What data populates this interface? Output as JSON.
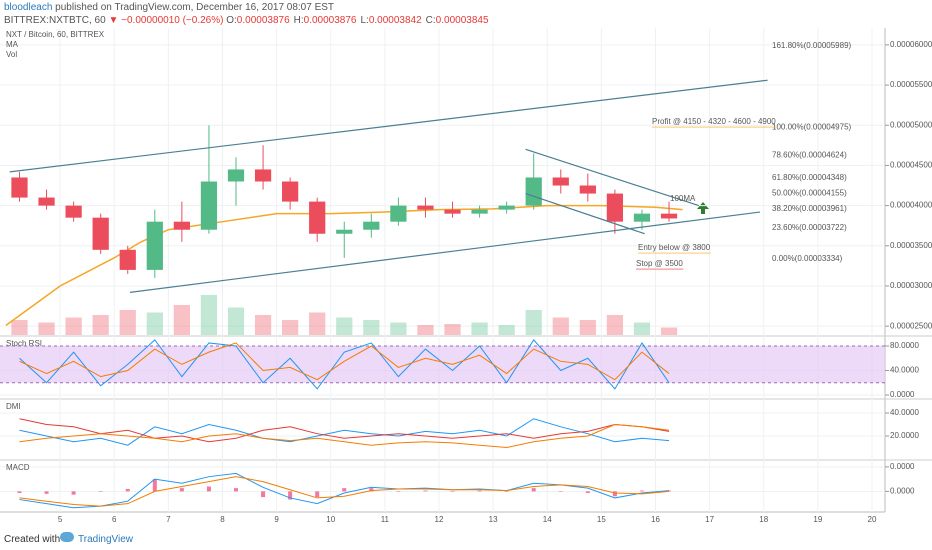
{
  "header": {
    "author": "bloodleach",
    "published": "published on TradingView.com, December 16, 2017 08:07 EST",
    "symbol": "BITTREX:NXTBTC, 60",
    "change": "▼ −0.00000010 (−0.26%)",
    "ohlc": [
      {
        "label": "O:",
        "value": "0.00003876"
      },
      {
        "label": "H:",
        "value": "0.00003876"
      },
      {
        "label": "L:",
        "value": "0.00003842"
      },
      {
        "label": "C:",
        "value": "0.00003845"
      }
    ]
  },
  "footer": {
    "created": "Created with",
    "brand": "TradingView"
  },
  "chart_data": [
    {
      "type": "candlestick",
      "title": "NXT / Bitcoin, 60, BITTREX",
      "x": [
        4.25,
        4.75,
        5.25,
        5.75,
        6.25,
        6.75,
        7.25,
        7.75,
        8.25,
        8.75,
        9.25,
        9.75,
        10.25,
        10.75,
        11.25,
        11.75,
        12.25,
        12.75,
        13.25,
        13.75,
        14.25,
        14.75,
        15.25,
        15.75,
        16.25
      ],
      "open": [
        4.35e-05,
        4.1e-05,
        4e-05,
        3.85e-05,
        3.45e-05,
        3.2e-05,
        3.8e-05,
        3.7e-05,
        4.3e-05,
        4.45e-05,
        4.3e-05,
        4.05e-05,
        3.65e-05,
        3.7e-05,
        3.8e-05,
        4e-05,
        3.95e-05,
        3.9e-05,
        3.95e-05,
        4e-05,
        4.35e-05,
        4.25e-05,
        4.15e-05,
        3.8e-05,
        3.9e-05
      ],
      "high": [
        4.42e-05,
        4.2e-05,
        4.05e-05,
        3.9e-05,
        3.5e-05,
        3.95e-05,
        4.05e-05,
        5e-05,
        4.6e-05,
        4.75e-05,
        4.35e-05,
        4.1e-05,
        3.8e-05,
        3.9e-05,
        4.1e-05,
        4.1e-05,
        4.05e-05,
        4e-05,
        4.05e-05,
        4.65e-05,
        4.45e-05,
        4.4e-05,
        4.2e-05,
        3.95e-05,
        4.05e-05
      ],
      "low": [
        4.05e-05,
        3.95e-05,
        3.8e-05,
        3.4e-05,
        3.15e-05,
        3.1e-05,
        3.55e-05,
        3.65e-05,
        4e-05,
        4.2e-05,
        3.95e-05,
        3.55e-05,
        3.35e-05,
        3.6e-05,
        3.75e-05,
        3.85e-05,
        3.85e-05,
        3.85e-05,
        3.9e-05,
        3.95e-05,
        4.15e-05,
        4.05e-05,
        3.65e-05,
        3.7e-05,
        3.8e-05
      ],
      "close": [
        4.1e-05,
        4e-05,
        3.85e-05,
        3.45e-05,
        3.2e-05,
        3.8e-05,
        3.7e-05,
        4.3e-05,
        4.45e-05,
        4.3e-05,
        4.05e-05,
        3.65e-05,
        3.7e-05,
        3.8e-05,
        4e-05,
        3.95e-05,
        3.9e-05,
        3.95e-05,
        4e-05,
        4.35e-05,
        4.25e-05,
        4.15e-05,
        3.8e-05,
        3.9e-05,
        3.84e-05
      ],
      "up_color": "#53b987",
      "down_color": "#eb4d5c",
      "volume_name": "Vol",
      "volume": [
        30,
        25,
        35,
        40,
        50,
        45,
        60,
        80,
        55,
        40,
        30,
        45,
        35,
        30,
        25,
        20,
        22,
        25,
        20,
        50,
        35,
        30,
        40,
        25,
        15
      ],
      "ma": {
        "name": "MA",
        "color": "#f5a623",
        "x": [
          4.0,
          5.0,
          6.0,
          6.5,
          7.0,
          8.0,
          9.0,
          10.0,
          11.0,
          12.0,
          13.0,
          14.0,
          15.0,
          16.0,
          16.5
        ],
        "values": [
          2.51e-05,
          3e-05,
          3.35e-05,
          3.55e-05,
          3.7e-05,
          3.8e-05,
          3.9e-05,
          3.9e-05,
          3.92e-05,
          3.95e-05,
          3.96e-05,
          4e-05,
          4e-05,
          3.98e-05,
          3.95e-05
        ]
      },
      "lines": [
        {
          "color": "#4a7f93",
          "x": [
            4.07,
            18.07
          ],
          "values": [
            4.42e-05,
            5.56e-05
          ]
        },
        {
          "color": "#4a7f93",
          "x": [
            6.29,
            17.93
          ],
          "values": [
            2.92e-05,
            3.92e-05
          ]
        },
        {
          "color": "#4a7f93",
          "x": [
            13.6,
            16.8
          ],
          "values": [
            4.7e-05,
            4e-05
          ]
        },
        {
          "color": "#4a7f93",
          "x": [
            13.6,
            15.8
          ],
          "values": [
            4.15e-05,
            3.65e-05
          ]
        }
      ],
      "fib": [
        {
          "label": "161.80%(0.00005989)",
          "value": 5.989e-05
        },
        {
          "label": "100.00%(0.00004975)",
          "value": 4.975e-05
        },
        {
          "label": "78.60%(0.00004624)",
          "value": 4.624e-05
        },
        {
          "label": "61.80%(0.00004348)",
          "value": 4.348e-05
        },
        {
          "label": "50.00%(0.00004155)",
          "value": 4.155e-05
        },
        {
          "label": "38.20%(0.00003961)",
          "value": 3.961e-05
        },
        {
          "label": "23.60%(0.00003722)",
          "value": 3.722e-05
        },
        {
          "label": "0.00%(0.00003334)",
          "value": 3.334e-05
        }
      ],
      "annotations": [
        "100MA",
        "Profit @ 4150 - 4320 - 4600 - 4900",
        "Entry below @ 3800",
        "Stop @ 3500"
      ],
      "xlim": [
        3.89,
        20.24
      ],
      "xticks": [
        5,
        6,
        7,
        8,
        9,
        10,
        11,
        12,
        13,
        14,
        15,
        16,
        17,
        18,
        19,
        20
      ],
      "ylim": [
        2.39e-05,
        6.21e-05
      ],
      "yticks": [
        {
          "value": 6e-05,
          "label": "0.00006000"
        },
        {
          "value": 5.5e-05,
          "label": "0.00005500"
        },
        {
          "value": 5e-05,
          "label": "0.00005000"
        },
        {
          "value": 4.5e-05,
          "label": "0.00004500"
        },
        {
          "value": 4e-05,
          "label": "0.00004000"
        },
        {
          "value": 3.5e-05,
          "label": "0.00003500"
        },
        {
          "value": 3e-05,
          "label": "0.00003000"
        },
        {
          "value": 2.5e-05,
          "label": "0.00002500"
        }
      ]
    },
    {
      "type": "line",
      "title": "Stoch RSI",
      "x": [
        4.25,
        4.75,
        5.25,
        5.75,
        6.25,
        6.75,
        7.25,
        7.75,
        8.25,
        8.75,
        9.25,
        9.75,
        10.25,
        10.75,
        11.25,
        11.75,
        12.25,
        12.75,
        13.25,
        13.75,
        14.25,
        14.75,
        15.25,
        15.75,
        16.25
      ],
      "band": {
        "values": [
          20,
          80
        ],
        "color": "#e6c9f5"
      },
      "series": [
        {
          "color": "#2196f3",
          "values": [
            60,
            20,
            70,
            15,
            50,
            90,
            30,
            85,
            80,
            20,
            60,
            10,
            70,
            85,
            30,
            75,
            40,
            80,
            20,
            90,
            40,
            60,
            10,
            85,
            20
          ]
        },
        {
          "color": "#f57c00",
          "values": [
            55,
            35,
            55,
            30,
            40,
            75,
            50,
            70,
            85,
            40,
            45,
            25,
            55,
            80,
            45,
            60,
            50,
            65,
            35,
            75,
            55,
            50,
            25,
            70,
            35
          ]
        }
      ],
      "ylim": [
        -4.9,
        94.7
      ],
      "yticks": [
        {
          "value": 80,
          "label": "80.0000"
        },
        {
          "value": 40,
          "label": "40.0000"
        },
        {
          "value": 0,
          "label": "0.0000"
        }
      ]
    },
    {
      "type": "line",
      "title": "DMI",
      "x": [
        4.25,
        4.75,
        5.25,
        5.75,
        6.25,
        6.75,
        7.25,
        7.75,
        8.25,
        8.75,
        9.25,
        9.75,
        10.25,
        10.75,
        11.25,
        11.75,
        12.25,
        12.75,
        13.25,
        13.75,
        14.25,
        14.75,
        15.25,
        15.75,
        16.25
      ],
      "series": [
        {
          "color": "#2196f3",
          "values": [
            25,
            20,
            15,
            18,
            12,
            28,
            22,
            30,
            25,
            18,
            15,
            20,
            25,
            22,
            20,
            24,
            22,
            25,
            20,
            35,
            28,
            22,
            15,
            18,
            16
          ]
        },
        {
          "color": "#e53935",
          "values": [
            35,
            30,
            28,
            22,
            25,
            18,
            20,
            15,
            18,
            25,
            28,
            22,
            18,
            20,
            22,
            20,
            18,
            20,
            22,
            18,
            22,
            24,
            30,
            28,
            24
          ]
        },
        {
          "color": "#f57c00",
          "values": [
            15,
            18,
            20,
            22,
            20,
            18,
            15,
            20,
            22,
            18,
            16,
            18,
            15,
            12,
            14,
            15,
            14,
            12,
            10,
            15,
            18,
            20,
            30,
            28,
            25
          ]
        }
      ],
      "ylim": [
        0,
        51.3
      ],
      "yticks": [
        {
          "value": 40,
          "label": "40.0000"
        },
        {
          "value": 20,
          "label": "20.0000"
        }
      ]
    },
    {
      "type": "line",
      "title": "MACD",
      "x": [
        4.25,
        4.75,
        5.25,
        5.75,
        6.25,
        6.75,
        7.25,
        7.75,
        8.25,
        8.75,
        9.25,
        9.75,
        10.25,
        10.75,
        11.25,
        11.75,
        12.25,
        12.75,
        13.25,
        13.75,
        14.25,
        14.75,
        15.25,
        15.75,
        16.25
      ],
      "histogram": {
        "color": "#e91e63",
        "values": [
          -2e-08,
          -3e-08,
          -4e-08,
          0,
          3e-08,
          1.5e-07,
          4e-08,
          6e-08,
          4e-08,
          -7e-08,
          -1e-07,
          -7e-08,
          4e-08,
          4e-08,
          0,
          1e-08,
          0,
          1e-08,
          0,
          4e-08,
          0,
          -2e-08,
          -6e-08,
          1e-08,
          1e-08
        ]
      },
      "series": [
        {
          "color": "#2196f3",
          "values": [
            -1e-07,
            -1.5e-07,
            -2e-07,
            -1.8e-07,
            -1.2e-07,
            1.5e-07,
            1e-07,
            1.8e-07,
            2.2e-07,
            5e-08,
            -8e-08,
            -1.5e-07,
            -2e-08,
            5e-08,
            3e-08,
            4e-08,
            2e-08,
            3e-08,
            1e-08,
            1e-07,
            8e-08,
            4e-08,
            -8e-08,
            -2e-08,
            1e-08
          ]
        },
        {
          "color": "#f57c00",
          "values": [
            -8e-08,
            -1.2e-07,
            -1.6e-07,
            -1.8e-07,
            -1.5e-07,
            0,
            6e-08,
            1.2e-07,
            1.8e-07,
            1.2e-07,
            2e-08,
            -8e-08,
            -6e-08,
            1e-08,
            3e-08,
            3e-08,
            2e-08,
            2e-08,
            1e-08,
            6e-08,
            8e-08,
            6e-08,
            -2e-08,
            -3e-08,
            0
          ]
        }
      ],
      "ylim": [
        -2.4e-07,
        3.72e-07
      ],
      "yticks": [
        {
          "value": 3e-07,
          "label": "0.0000"
        },
        {
          "value": 0,
          "label": "0.0000"
        }
      ]
    }
  ]
}
